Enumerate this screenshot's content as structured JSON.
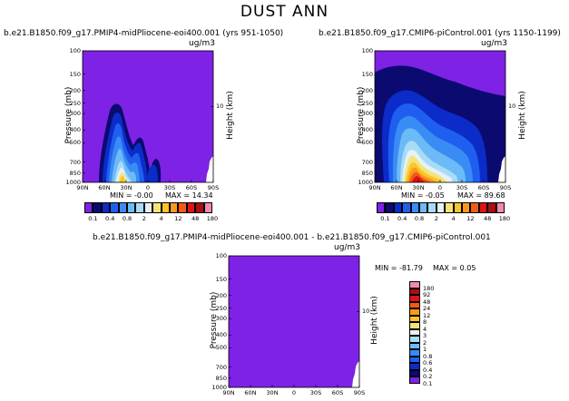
{
  "title": "DUST ANN",
  "panels": [
    {
      "id": "mid-pliocene",
      "title": "b.e21.B1850.f09_g17.PMIP4-midPliocene-eoi400.001 (yrs 951-1050)",
      "units": "ug/m3",
      "min_label": "MIN = -0.00",
      "max_label": "MAX = 14.34",
      "ylabel": "Pressure (mb)",
      "ylabel_right": "Height (km)"
    },
    {
      "id": "pi-control",
      "title": "b.e21.B1850.f09_g17.CMIP6-piControl.001 (yrs 1150-1199)",
      "units": "ug/m3",
      "min_label": "MIN = -0.05",
      "max_label": "MAX = 89.68",
      "ylabel": "Pressure (mb)",
      "ylabel_right": "Height (km)"
    },
    {
      "id": "difference",
      "title": "b.e21.B1850.f09_g17.PMIP4-midPliocene-eoi400.001 - b.e21.B1850.f09_g17.CMIP6-piControl.001",
      "units": "ug/m3",
      "min_label": "MIN = -81.79",
      "max_label": "MAX = 0.05",
      "ylabel": "Pressure (mb)",
      "ylabel_right": "Height (km)"
    }
  ],
  "chart_data": {
    "type": "heatmap",
    "x_ticks": [
      "90N",
      "60N",
      "30N",
      "0",
      "30S",
      "60S",
      "90S"
    ],
    "y_ticks": [
      "100",
      "150",
      "200",
      "250",
      "300",
      "400",
      "500",
      "700",
      "850",
      "1000"
    ],
    "y_values": [
      100,
      150,
      200,
      250,
      300,
      400,
      500,
      700,
      850,
      1000
    ],
    "yscale": "log",
    "ylim": [
      1000,
      100
    ],
    "right_tick": "10",
    "right_tick_pressure": 265,
    "colorbar_levels": [
      "0.1",
      "0.2",
      "0.4",
      "0.6",
      "0.8",
      "1",
      "2",
      "3",
      "4",
      "8",
      "12",
      "24",
      "48",
      "92",
      "180"
    ],
    "colorbar_labels": [
      "0.1",
      "0.4",
      "0.8",
      "2",
      "4",
      "12",
      "48",
      "180"
    ],
    "colorbar_colors": [
      "#7e22e6",
      "#0a0a70",
      "#0b2cc8",
      "#1f5ff0",
      "#3a8cf5",
      "#6cbaf7",
      "#a8dcf5",
      "#e6f1f7",
      "#f5e37a",
      "#f8c626",
      "#f89a1c",
      "#f45a14",
      "#dd1414",
      "#a51010",
      "#f08ab4"
    ],
    "background_color": "#7e22e6"
  }
}
